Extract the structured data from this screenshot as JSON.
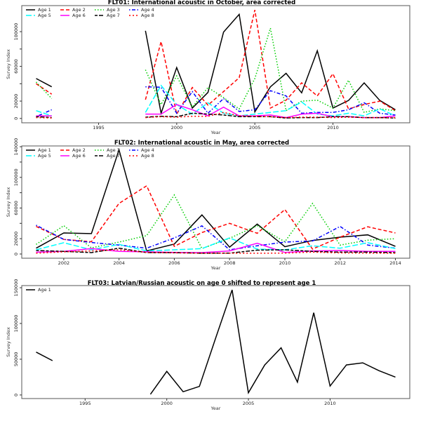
{
  "chart_data": [
    {
      "type": "line",
      "title": "FLT01:       International acoustic in October, area corrected",
      "xlabel": "Year",
      "ylabel": "Survey Index",
      "xlim": [
        1990.08,
        2014.92
      ],
      "ylim": [
        -5000,
        130000
      ],
      "xticks": [
        1995,
        2000,
        2005,
        2010
      ],
      "yticks": [
        0,
        20000,
        40000,
        60000,
        80000,
        100000
      ],
      "ytick_labels": [
        "0",
        "20000",
        "",
        "60000",
        "",
        "100000"
      ],
      "legend_placement": "top-left",
      "grid": false,
      "x": [
        1991,
        1992,
        1993,
        1994,
        1995,
        1996,
        1997,
        1998,
        1999,
        2000,
        2001,
        2002,
        2003,
        2004,
        2005,
        2006,
        2007,
        2008,
        2009,
        2010,
        2011,
        2012,
        2013,
        2014
      ],
      "series": [
        {
          "name": "Age 1",
          "color": "#000000",
          "dash": "solid",
          "values": [
            46000,
            36500,
            null,
            null,
            null,
            null,
            null,
            101000,
            6000,
            58600,
            12000,
            30000,
            99500,
            120000,
            7500,
            36500,
            52000,
            29500,
            78000,
            12000,
            20700,
            41000,
            20700,
            10000
          ]
        },
        {
          "name": "Age 2",
          "color": "#ff0000",
          "dash": "dashed",
          "values": [
            40000,
            28000,
            null,
            null,
            null,
            null,
            null,
            21600,
            88500,
            5000,
            35700,
            15400,
            31000,
            47000,
            125000,
            12000,
            21000,
            41000,
            26000,
            51500,
            11000,
            16000,
            20000,
            9000
          ]
        },
        {
          "name": "Age 3",
          "color": "#00cd00",
          "dash": "dotted",
          "values": [
            42000,
            23000,
            null,
            null,
            null,
            null,
            null,
            56000,
            16000,
            49000,
            13000,
            35700,
            24000,
            11000,
            46000,
            104000,
            9000,
            20000,
            21000,
            12000,
            44000,
            7000,
            11000,
            9000
          ]
        },
        {
          "name": "Age 4",
          "color": "#0000ff",
          "dash": "dotdash",
          "values": [
            2000,
            10000,
            null,
            null,
            null,
            null,
            null,
            36500,
            36000,
            6000,
            31000,
            6000,
            23000,
            8000,
            10000,
            32000,
            26000,
            6000,
            7000,
            7000,
            10000,
            18000,
            6000,
            4000
          ]
        },
        {
          "name": "Age 5",
          "color": "#00ffff",
          "dash": "longdash",
          "values": [
            9000,
            3000,
            null,
            null,
            null,
            null,
            null,
            7000,
            38000,
            16000,
            5000,
            18000,
            6000,
            3000,
            5000,
            7000,
            9000,
            19000,
            5000,
            3000,
            6000,
            3000,
            11000,
            3000
          ]
        },
        {
          "name": "Age 6",
          "color": "#ff00ff",
          "dash": "solid",
          "values": [
            3000,
            3000,
            null,
            null,
            null,
            null,
            null,
            5000,
            5000,
            16000,
            10000,
            3000,
            13000,
            3000,
            3000,
            4000,
            1000,
            5000,
            6000,
            2000,
            2000,
            1000,
            1000,
            3000
          ]
        },
        {
          "name": "Age 7",
          "color": "#000000",
          "dash": "twodash",
          "values": [
            2000,
            1000,
            null,
            null,
            null,
            null,
            null,
            1500,
            2500,
            2000,
            6000,
            5000,
            4000,
            2000,
            2000,
            2000,
            500,
            1000,
            1000,
            2000,
            2000,
            1000,
            1000,
            500
          ]
        },
        {
          "name": "Age 8",
          "color": "#ff0000",
          "dash": "reddot",
          "values": [
            1000,
            500,
            null,
            null,
            null,
            null,
            null,
            1000,
            2000,
            1500,
            2500,
            2500,
            7000,
            3000,
            2500,
            2000,
            1000,
            1500,
            1500,
            1000,
            1500,
            1000,
            1000,
            1000
          ]
        }
      ]
    },
    {
      "type": "line",
      "title": "FLT02: International acoustic in May, area corrected",
      "xlabel": "Year",
      "ylabel": "Survey Index",
      "xlim": [
        2000.48,
        2014.52
      ],
      "ylim": [
        -5500,
        141000
      ],
      "xticks": [
        2002,
        2004,
        2006,
        2008,
        2010,
        2012,
        2014
      ],
      "yticks": [
        0,
        20000,
        40000,
        60000,
        80000,
        100000,
        120000,
        140000
      ],
      "ytick_labels": [
        "0",
        "20000",
        "",
        "60000",
        "",
        "100000",
        "",
        "140000"
      ],
      "legend_placement": "top-left",
      "grid": false,
      "x": [
        2001,
        2002,
        2003,
        2004,
        2005,
        2006,
        2007,
        2008,
        2009,
        2010,
        2011,
        2012,
        2013,
        2014
      ],
      "series": [
        {
          "name": "Age 1",
          "color": "#000000",
          "dash": "solid",
          "values": [
            7600,
            27500,
            26600,
            136000,
            4000,
            13000,
            51000,
            9000,
            39000,
            9500,
            17700,
            22000,
            25000,
            10000
          ]
        },
        {
          "name": "Age 2",
          "color": "#ff0000",
          "dash": "dashed",
          "values": [
            36000,
            19000,
            16000,
            66000,
            89000,
            10000,
            28000,
            40000,
            27000,
            58000,
            6400,
            22000,
            35500,
            27500
          ]
        },
        {
          "name": "Age 3",
          "color": "#00cd00",
          "dash": "dotted",
          "values": [
            12500,
            37000,
            8000,
            15600,
            24000,
            77000,
            7000,
            20500,
            37000,
            16000,
            66000,
            11600,
            18000,
            20000
          ]
        },
        {
          "name": "Age 4",
          "color": "#0000ff",
          "dash": "dotdash",
          "values": [
            37600,
            19000,
            15000,
            11600,
            7600,
            21000,
            36700,
            5500,
            10700,
            15600,
            17000,
            36000,
            11600,
            7600
          ]
        },
        {
          "name": "Age 5",
          "color": "#00ffff",
          "dash": "longdash",
          "values": [
            5500,
            14700,
            5500,
            12500,
            4000,
            5500,
            7000,
            21000,
            6400,
            5500,
            10700,
            7600,
            14700,
            7000
          ]
        },
        {
          "name": "Age 6",
          "color": "#ff00ff",
          "dash": "solid",
          "values": [
            2400,
            3400,
            7000,
            3400,
            2800,
            2000,
            1800,
            4000,
            14000,
            2000,
            4000,
            4600,
            3400,
            3400
          ]
        },
        {
          "name": "Age 7",
          "color": "#000000",
          "dash": "twodash",
          "values": [
            4600,
            3400,
            1800,
            7600,
            1800,
            1800,
            1000,
            1200,
            5000,
            5500,
            3400,
            2500,
            2500,
            1800
          ]
        },
        {
          "name": "Age 8",
          "color": "#ff0000",
          "dash": "reddot",
          "values": [
            1000,
            2800,
            4000,
            5500,
            2000,
            1500,
            1000,
            1000,
            1000,
            1200,
            2500,
            1500,
            1200,
            1000
          ]
        }
      ]
    },
    {
      "type": "line",
      "title": "FLT03: Latvian/Russian acoustic on age 0 shifted to represent age 1",
      "xlabel": "Year",
      "ylabel": "Survey Index",
      "xlim": [
        1991.12,
        2014.88
      ],
      "ylim": [
        -5000,
        153000
      ],
      "xticks": [
        1995,
        2000,
        2005,
        2010
      ],
      "yticks": [
        0,
        50000,
        100000,
        150000
      ],
      "ytick_labels": [
        "0",
        "50000",
        "100000",
        "150000"
      ],
      "legend_placement": "top-left",
      "grid": false,
      "x": [
        1992,
        1993,
        1994,
        1995,
        1996,
        1997,
        1998,
        1999,
        2000,
        2001,
        2002,
        2003,
        2004,
        2005,
        2006,
        2007,
        2008,
        2009,
        2010,
        2011,
        2012,
        2013,
        2014
      ],
      "series": [
        {
          "name": "Age 1",
          "color": "#000000",
          "dash": "solid",
          "values": [
            60000,
            48000,
            null,
            null,
            null,
            null,
            null,
            1000,
            33000,
            4500,
            12000,
            80000,
            147000,
            3000,
            42000,
            66000,
            18000,
            115000,
            12500,
            42000,
            45000,
            34000,
            25000
          ]
        }
      ]
    }
  ]
}
